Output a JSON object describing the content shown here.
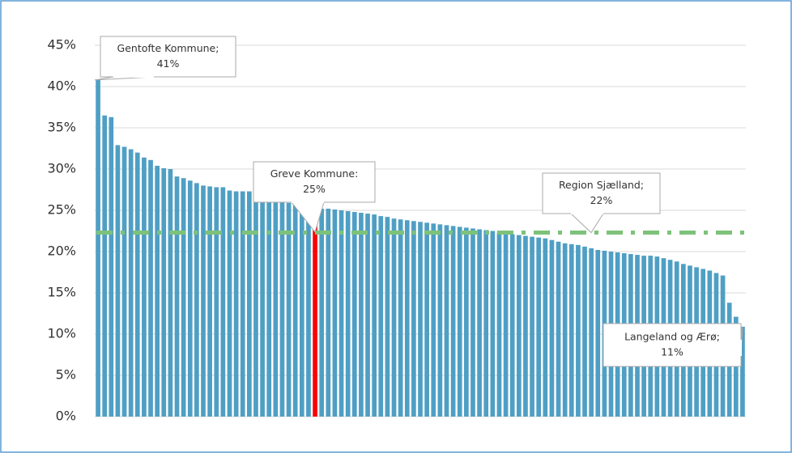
{
  "chart_data": {
    "type": "bar",
    "categories": [
      null,
      null,
      null,
      null,
      null,
      null,
      null,
      null,
      null,
      null,
      null,
      null,
      null,
      null,
      null,
      null,
      null,
      null,
      null,
      null,
      null,
      null,
      null,
      null,
      null,
      null,
      null,
      null,
      null,
      null,
      null,
      null,
      null,
      null,
      null,
      null,
      null,
      null,
      null,
      null,
      null,
      null,
      null,
      null,
      null,
      null,
      null,
      null,
      null,
      null,
      null,
      null,
      null,
      null,
      null,
      null,
      null,
      null,
      null,
      null,
      null,
      null,
      null,
      null,
      null,
      null,
      null,
      null,
      null,
      null,
      null,
      null,
      null,
      null,
      null,
      null,
      null,
      null,
      null,
      null,
      null,
      null,
      null,
      null,
      null,
      null,
      null,
      null,
      null,
      null,
      null,
      null,
      null,
      null,
      null,
      null,
      null,
      null,
      null
    ],
    "values": [
      40.8,
      36.5,
      36.3,
      32.9,
      32.7,
      32.4,
      32.0,
      31.4,
      31.1,
      30.4,
      30.1,
      30.0,
      29.1,
      28.9,
      28.6,
      28.3,
      28.0,
      27.9,
      27.8,
      27.8,
      27.4,
      27.3,
      27.3,
      27.3,
      27.2,
      27.2,
      26.5,
      26.3,
      26.1,
      25.9,
      25.7,
      25.6,
      25.5,
      25.3,
      25.2,
      25.2,
      25.1,
      25.0,
      24.9,
      24.8,
      24.7,
      24.6,
      24.5,
      24.3,
      24.2,
      24.0,
      23.9,
      23.8,
      23.7,
      23.6,
      23.5,
      23.4,
      23.3,
      23.2,
      23.1,
      23.0,
      22.9,
      22.8,
      22.7,
      22.6,
      22.5,
      22.3,
      22.2,
      22.1,
      22.0,
      21.9,
      21.8,
      21.7,
      21.6,
      21.4,
      21.2,
      21.0,
      20.9,
      20.8,
      20.6,
      20.4,
      20.2,
      20.1,
      20.0,
      19.9,
      19.8,
      19.7,
      19.6,
      19.5,
      19.5,
      19.4,
      19.2,
      19.0,
      18.8,
      18.5,
      18.3,
      18.1,
      17.9,
      17.7,
      17.4,
      17.1,
      13.8,
      12.1,
      10.9
    ],
    "color": "#4f9fc4",
    "highlight": {
      "index": 33,
      "color": "#ff0000"
    },
    "reference_line": {
      "value": 22.3,
      "color": "#7dc27a",
      "label": [
        "Region Sjælland;",
        "22%"
      ]
    },
    "annotations": [
      {
        "index": 0,
        "text": [
          "Gentofte Kommune;",
          "41%"
        ]
      },
      {
        "index": 33,
        "text": [
          "Greve Kommune:",
          "25%"
        ]
      },
      {
        "index": 98,
        "text": [
          "Langeland og Ærø;",
          "11%"
        ]
      }
    ],
    "ylim": [
      0,
      45
    ],
    "yticks": [
      {
        "value": 0,
        "label": "0%"
      },
      {
        "value": 5,
        "label": "5%"
      },
      {
        "value": 10,
        "label": "10%"
      },
      {
        "value": 15,
        "label": "15%"
      },
      {
        "value": 20,
        "label": "20%"
      },
      {
        "value": 25,
        "label": "25%"
      },
      {
        "value": 30,
        "label": "30%"
      },
      {
        "value": 35,
        "label": "35%"
      },
      {
        "value": 40,
        "label": "40%"
      },
      {
        "value": 45,
        "label": "45%"
      }
    ],
    "grid": true
  }
}
